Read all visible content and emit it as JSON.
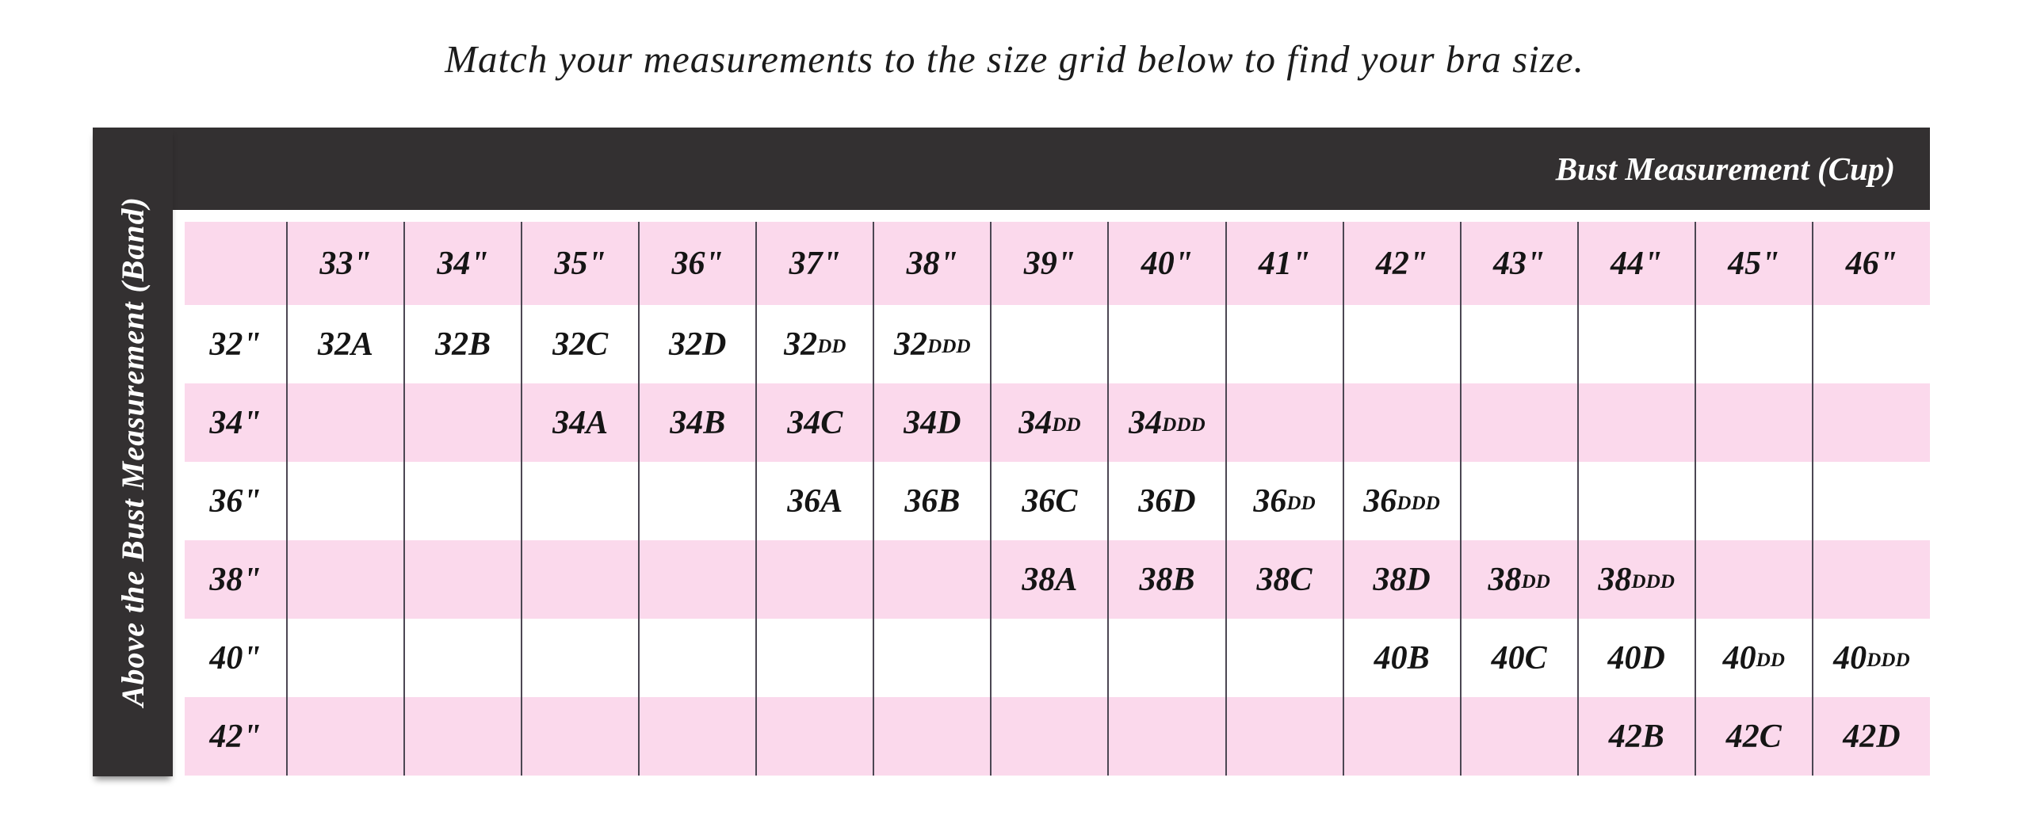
{
  "page_title": "Match your measurements to the size grid below to find your bra size.",
  "chart_data": {
    "type": "table",
    "title": "Match your measurements to the size grid below to find your bra size.",
    "column_axis_label": "Bust Measurement (Cup)",
    "row_axis_label": "Above the Bust Measurement (Band)",
    "columns": [
      "33\"",
      "34\"",
      "35\"",
      "36\"",
      "37\"",
      "38\"",
      "39\"",
      "40\"",
      "41\"",
      "42\"",
      "43\"",
      "44\"",
      "45\"",
      "46\""
    ],
    "rows": [
      {
        "band": "32\"",
        "stripe": "white",
        "cells": [
          "32A",
          "32B",
          "32C",
          "32D",
          "32DD",
          "32DDD",
          "",
          "",
          "",
          "",
          "",
          "",
          "",
          ""
        ]
      },
      {
        "band": "34\"",
        "stripe": "pink",
        "cells": [
          "",
          "",
          "34A",
          "34B",
          "34C",
          "34D",
          "34DD",
          "34DDD",
          "",
          "",
          "",
          "",
          "",
          ""
        ]
      },
      {
        "band": "36\"",
        "stripe": "white",
        "cells": [
          "",
          "",
          "",
          "",
          "36A",
          "36B",
          "36C",
          "36D",
          "36DD",
          "36DDD",
          "",
          "",
          "",
          ""
        ]
      },
      {
        "band": "38\"",
        "stripe": "pink",
        "cells": [
          "",
          "",
          "",
          "",
          "",
          "",
          "38A",
          "38B",
          "38C",
          "38D",
          "38DD",
          "38DDD",
          "",
          ""
        ]
      },
      {
        "band": "40\"",
        "stripe": "white",
        "cells": [
          "",
          "",
          "",
          "",
          "",
          "",
          "",
          "",
          "",
          "40B",
          "40C",
          "40D",
          "40DD",
          "40DDD"
        ]
      },
      {
        "band": "42\"",
        "stripe": "pink",
        "cells": [
          "",
          "",
          "",
          "",
          "",
          "",
          "",
          "",
          "",
          "",
          "",
          "42B",
          "42C",
          "42D"
        ]
      }
    ],
    "header_stripe": "pink",
    "legend_position": "none",
    "grid": "vertical-lines-only"
  },
  "colors": {
    "background": "#FFFFFF",
    "pink": "#FBD9EC",
    "dark_bar": "#333031",
    "grid_line": "#4C4753",
    "cell_text": "#151515",
    "bar_text": "#FFFFFF"
  }
}
